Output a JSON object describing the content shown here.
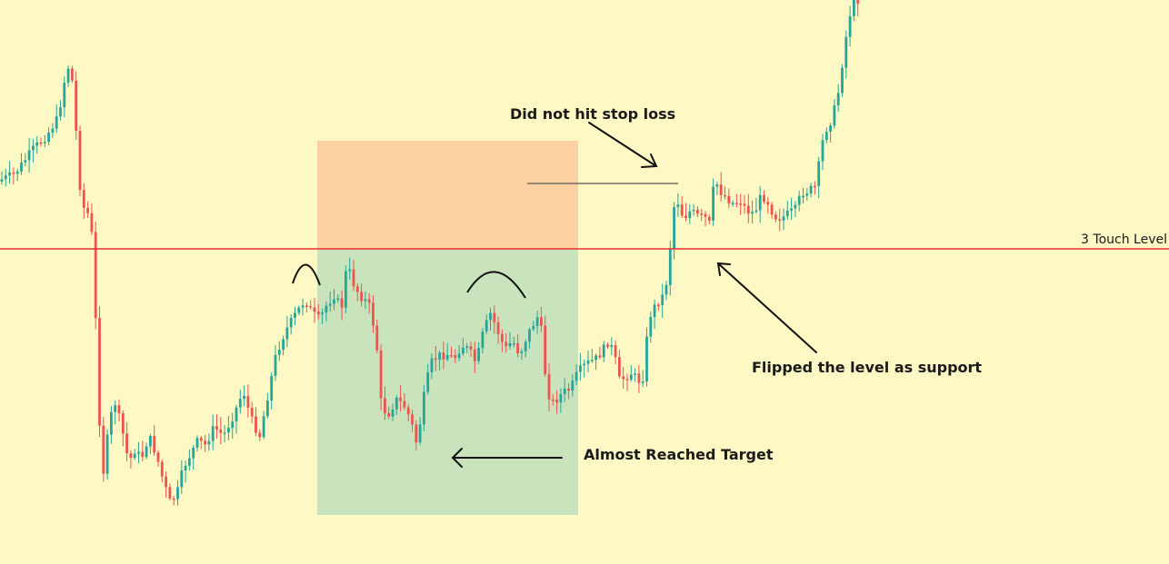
{
  "chart_data": {
    "type": "candlestick",
    "title": "",
    "xlabel": "",
    "ylabel": "",
    "grid": false,
    "colors": {
      "background": "#fdf8c4",
      "bull": "#26a69a",
      "bear": "#ef5350",
      "level_line": "#e8302e",
      "stop_zone": "#fcd2a2",
      "target_zone": "#c9e4bc",
      "annotation": "#111111"
    },
    "ylim": [
      0,
      621
    ],
    "path_points": [
      [
        0,
        200
      ],
      [
        20,
        192
      ],
      [
        40,
        165
      ],
      [
        55,
        150
      ],
      [
        68,
        130
      ],
      [
        76,
        85
      ],
      [
        80,
        72
      ],
      [
        86,
        100
      ],
      [
        90,
        190
      ],
      [
        96,
        228
      ],
      [
        104,
        240
      ],
      [
        108,
        300
      ],
      [
        112,
        440
      ],
      [
        118,
        520
      ],
      [
        124,
        470
      ],
      [
        130,
        440
      ],
      [
        138,
        470
      ],
      [
        146,
        510
      ],
      [
        152,
        495
      ],
      [
        160,
        505
      ],
      [
        168,
        480
      ],
      [
        176,
        500
      ],
      [
        184,
        530
      ],
      [
        192,
        555
      ],
      [
        200,
        540
      ],
      [
        206,
        515
      ],
      [
        214,
        500
      ],
      [
        222,
        485
      ],
      [
        230,
        490
      ],
      [
        240,
        470
      ],
      [
        250,
        480
      ],
      [
        262,
        455
      ],
      [
        272,
        430
      ],
      [
        280,
        460
      ],
      [
        290,
        480
      ],
      [
        300,
        430
      ],
      [
        308,
        390
      ],
      [
        318,
        365
      ],
      [
        330,
        345
      ],
      [
        340,
        330
      ],
      [
        348,
        345
      ],
      [
        356,
        352
      ],
      [
        364,
        335
      ],
      [
        372,
        325
      ],
      [
        380,
        340
      ],
      [
        386,
        290
      ],
      [
        392,
        310
      ],
      [
        400,
        325
      ],
      [
        410,
        335
      ],
      [
        418,
        370
      ],
      [
        424,
        450
      ],
      [
        432,
        455
      ],
      [
        440,
        440
      ],
      [
        448,
        445
      ],
      [
        456,
        462
      ],
      [
        463,
        490
      ],
      [
        470,
        440
      ],
      [
        478,
        400
      ],
      [
        486,
        392
      ],
      [
        496,
        390
      ],
      [
        504,
        395
      ],
      [
        512,
        380
      ],
      [
        520,
        385
      ],
      [
        528,
        400
      ],
      [
        536,
        365
      ],
      [
        544,
        345
      ],
      [
        552,
        365
      ],
      [
        560,
        385
      ],
      [
        568,
        375
      ],
      [
        576,
        390
      ],
      [
        584,
        370
      ],
      [
        592,
        355
      ],
      [
        598,
        345
      ],
      [
        604,
        410
      ],
      [
        610,
        445
      ],
      [
        616,
        440
      ],
      [
        624,
        432
      ],
      [
        632,
        428
      ],
      [
        640,
        410
      ],
      [
        650,
        400
      ],
      [
        660,
        395
      ],
      [
        668,
        385
      ],
      [
        674,
        375
      ],
      [
        680,
        390
      ],
      [
        686,
        420
      ],
      [
        692,
        415
      ],
      [
        700,
        410
      ],
      [
        706,
        420
      ],
      [
        712,
        415
      ],
      [
        718,
        350
      ],
      [
        726,
        335
      ],
      [
        734,
        325
      ],
      [
        740,
        300
      ],
      [
        744,
        230
      ],
      [
        750,
        222
      ],
      [
        756,
        240
      ],
      [
        764,
        232
      ],
      [
        772,
        238
      ],
      [
        780,
        240
      ],
      [
        786,
        248
      ],
      [
        790,
        195
      ],
      [
        796,
        210
      ],
      [
        804,
        218
      ],
      [
        812,
        225
      ],
      [
        818,
        220
      ],
      [
        826,
        232
      ],
      [
        834,
        235
      ],
      [
        842,
        215
      ],
      [
        848,
        220
      ],
      [
        856,
        238
      ],
      [
        864,
        240
      ],
      [
        872,
        235
      ],
      [
        880,
        230
      ],
      [
        886,
        212
      ],
      [
        894,
        210
      ],
      [
        902,
        205
      ],
      [
        908,
        160
      ],
      [
        914,
        140
      ],
      [
        920,
        130
      ],
      [
        928,
        95
      ],
      [
        932,
        60
      ],
      [
        936,
        35
      ],
      [
        942,
        0
      ]
    ],
    "price_level": {
      "label": "3 Touch Level",
      "y": 274
    },
    "stop_zone": {
      "x0": 349,
      "x1": 636,
      "y0": 155,
      "y1": 274
    },
    "target_zone": {
      "x0": 349,
      "x1": 636,
      "y0": 274,
      "y1": 567
    },
    "stop_line": {
      "x0": 580,
      "x1": 746,
      "y": 202
    },
    "annotations": [
      {
        "key": "stop",
        "text": "Did not hit stop loss"
      },
      {
        "key": "flip",
        "text": "Flipped the level as support"
      },
      {
        "key": "target",
        "text": "Almost Reached Target"
      }
    ]
  }
}
